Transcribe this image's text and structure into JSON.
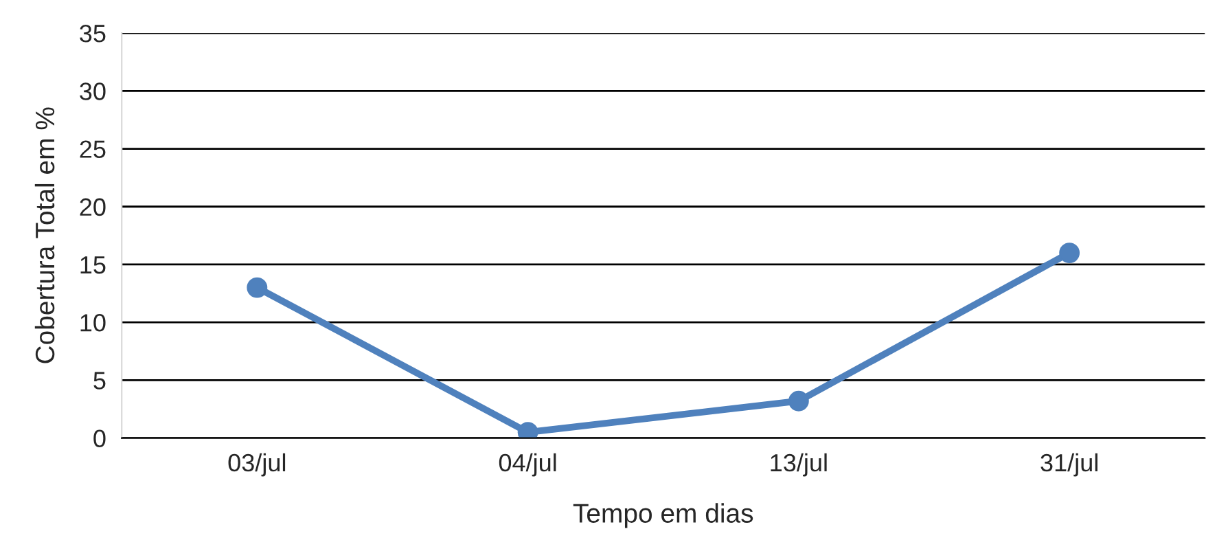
{
  "chart_data": {
    "type": "line",
    "xlabel": "Tempo em dias",
    "ylabel": "Cobertura Total em %",
    "categories": [
      "03/jul",
      "04/jul",
      "13/jul",
      "31/jul"
    ],
    "series": [
      {
        "color": "#4f81bd",
        "values": [
          13,
          0.5,
          3.2,
          16
        ]
      }
    ],
    "ylim": [
      0,
      35
    ],
    "yticks": [
      0,
      5,
      10,
      15,
      20,
      25,
      30,
      35
    ],
    "grid": "y",
    "marker": "circle",
    "line_style": "solid"
  }
}
